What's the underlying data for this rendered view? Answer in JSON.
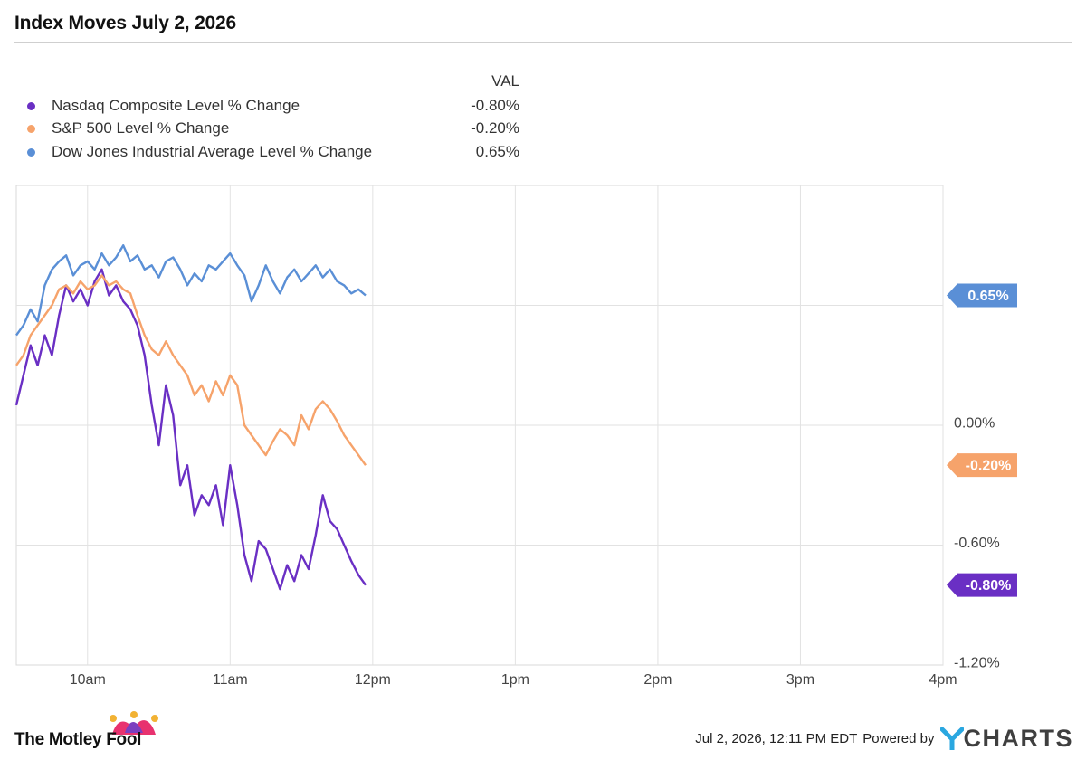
{
  "header": {
    "title": "Index Moves July 2, 2026"
  },
  "legend": {
    "value_header": "VAL",
    "items": [
      {
        "label": "Nasdaq Composite Level % Change",
        "value": "-0.80%",
        "color": "#6a2fc4"
      },
      {
        "label": "S&P 500 Level % Change",
        "value": "-0.20%",
        "color": "#f6a36b"
      },
      {
        "label": "Dow Jones Industrial Average Level % Change",
        "value": "0.65%",
        "color": "#5a8fd6"
      }
    ]
  },
  "chart_data": {
    "type": "line",
    "title": "Index Moves July 2, 2026",
    "x_unit": "time of day (hours, 24h clock)",
    "xlim": [
      9.5,
      16.0
    ],
    "x_ticks": [
      {
        "value": 10,
        "label": "10am"
      },
      {
        "value": 11,
        "label": "11am"
      },
      {
        "value": 12,
        "label": "12pm"
      },
      {
        "value": 13,
        "label": "1pm"
      },
      {
        "value": 14,
        "label": "2pm"
      },
      {
        "value": 15,
        "label": "3pm"
      },
      {
        "value": 16,
        "label": "4pm"
      }
    ],
    "ylim": [
      -1.2,
      1.2
    ],
    "y_ticks": [
      {
        "value": 0.0,
        "label": "0.00%"
      },
      {
        "value": -0.6,
        "label": "-0.60%"
      },
      {
        "value": -1.2,
        "label": "-1.20%"
      }
    ],
    "y_gridlines": [
      0.6,
      0.0,
      -0.6
    ],
    "series": [
      {
        "name": "Nasdaq Composite Level % Change",
        "color": "#6a2fc4",
        "last_label": "-0.80%",
        "x": [
          9.5,
          9.55,
          9.6,
          9.65,
          9.7,
          9.75,
          9.8,
          9.85,
          9.9,
          9.95,
          10.0,
          10.05,
          10.1,
          10.15,
          10.2,
          10.25,
          10.3,
          10.35,
          10.4,
          10.45,
          10.5,
          10.55,
          10.6,
          10.65,
          10.7,
          10.75,
          10.8,
          10.85,
          10.9,
          10.95,
          11.0,
          11.05,
          11.1,
          11.15,
          11.2,
          11.25,
          11.3,
          11.35,
          11.4,
          11.45,
          11.5,
          11.55,
          11.6,
          11.65,
          11.7,
          11.75,
          11.8,
          11.85,
          11.9,
          11.95
        ],
        "y": [
          0.1,
          0.25,
          0.4,
          0.3,
          0.45,
          0.35,
          0.55,
          0.7,
          0.62,
          0.68,
          0.6,
          0.72,
          0.78,
          0.65,
          0.7,
          0.62,
          0.58,
          0.5,
          0.35,
          0.1,
          -0.1,
          0.2,
          0.05,
          -0.3,
          -0.2,
          -0.45,
          -0.35,
          -0.4,
          -0.3,
          -0.5,
          -0.2,
          -0.4,
          -0.65,
          -0.78,
          -0.58,
          -0.62,
          -0.72,
          -0.82,
          -0.7,
          -0.78,
          -0.65,
          -0.72,
          -0.55,
          -0.35,
          -0.48,
          -0.52,
          -0.6,
          -0.68,
          -0.75,
          -0.8
        ]
      },
      {
        "name": "S&P 500 Level % Change",
        "color": "#f6a36b",
        "last_label": "-0.20%",
        "x": [
          9.5,
          9.55,
          9.6,
          9.65,
          9.7,
          9.75,
          9.8,
          9.85,
          9.9,
          9.95,
          10.0,
          10.05,
          10.1,
          10.15,
          10.2,
          10.25,
          10.3,
          10.35,
          10.4,
          10.45,
          10.5,
          10.55,
          10.6,
          10.65,
          10.7,
          10.75,
          10.8,
          10.85,
          10.9,
          10.95,
          11.0,
          11.05,
          11.1,
          11.15,
          11.2,
          11.25,
          11.3,
          11.35,
          11.4,
          11.45,
          11.5,
          11.55,
          11.6,
          11.65,
          11.7,
          11.75,
          11.8,
          11.85,
          11.9,
          11.95
        ],
        "y": [
          0.3,
          0.35,
          0.45,
          0.5,
          0.55,
          0.6,
          0.68,
          0.7,
          0.66,
          0.72,
          0.68,
          0.7,
          0.75,
          0.7,
          0.72,
          0.68,
          0.66,
          0.55,
          0.45,
          0.38,
          0.35,
          0.42,
          0.35,
          0.3,
          0.25,
          0.15,
          0.2,
          0.12,
          0.22,
          0.15,
          0.25,
          0.2,
          0.0,
          -0.05,
          -0.1,
          -0.15,
          -0.08,
          -0.02,
          -0.05,
          -0.1,
          0.05,
          -0.02,
          0.08,
          0.12,
          0.08,
          0.02,
          -0.05,
          -0.1,
          -0.15,
          -0.2
        ]
      },
      {
        "name": "Dow Jones Industrial Average Level % Change",
        "color": "#5a8fd6",
        "last_label": "0.65%",
        "x": [
          9.5,
          9.55,
          9.6,
          9.65,
          9.7,
          9.75,
          9.8,
          9.85,
          9.9,
          9.95,
          10.0,
          10.05,
          10.1,
          10.15,
          10.2,
          10.25,
          10.3,
          10.35,
          10.4,
          10.45,
          10.5,
          10.55,
          10.6,
          10.65,
          10.7,
          10.75,
          10.8,
          10.85,
          10.9,
          10.95,
          11.0,
          11.05,
          11.1,
          11.15,
          11.2,
          11.25,
          11.3,
          11.35,
          11.4,
          11.45,
          11.5,
          11.55,
          11.6,
          11.65,
          11.7,
          11.75,
          11.8,
          11.85,
          11.9,
          11.95
        ],
        "y": [
          0.45,
          0.5,
          0.58,
          0.52,
          0.7,
          0.78,
          0.82,
          0.85,
          0.75,
          0.8,
          0.82,
          0.78,
          0.86,
          0.8,
          0.84,
          0.9,
          0.82,
          0.85,
          0.78,
          0.8,
          0.74,
          0.82,
          0.84,
          0.78,
          0.7,
          0.76,
          0.72,
          0.8,
          0.78,
          0.82,
          0.86,
          0.8,
          0.75,
          0.62,
          0.7,
          0.8,
          0.72,
          0.66,
          0.74,
          0.78,
          0.72,
          0.76,
          0.8,
          0.74,
          0.78,
          0.72,
          0.7,
          0.66,
          0.68,
          0.65
        ]
      }
    ]
  },
  "footer": {
    "brand": "The Motley Fool",
    "timestamp": "Jul 2, 2026, 12:11 PM EDT",
    "powered_by": "Powered by",
    "ycharts_wordmark": "CHARTS",
    "ycharts_y_color": "#2aa7e0"
  }
}
